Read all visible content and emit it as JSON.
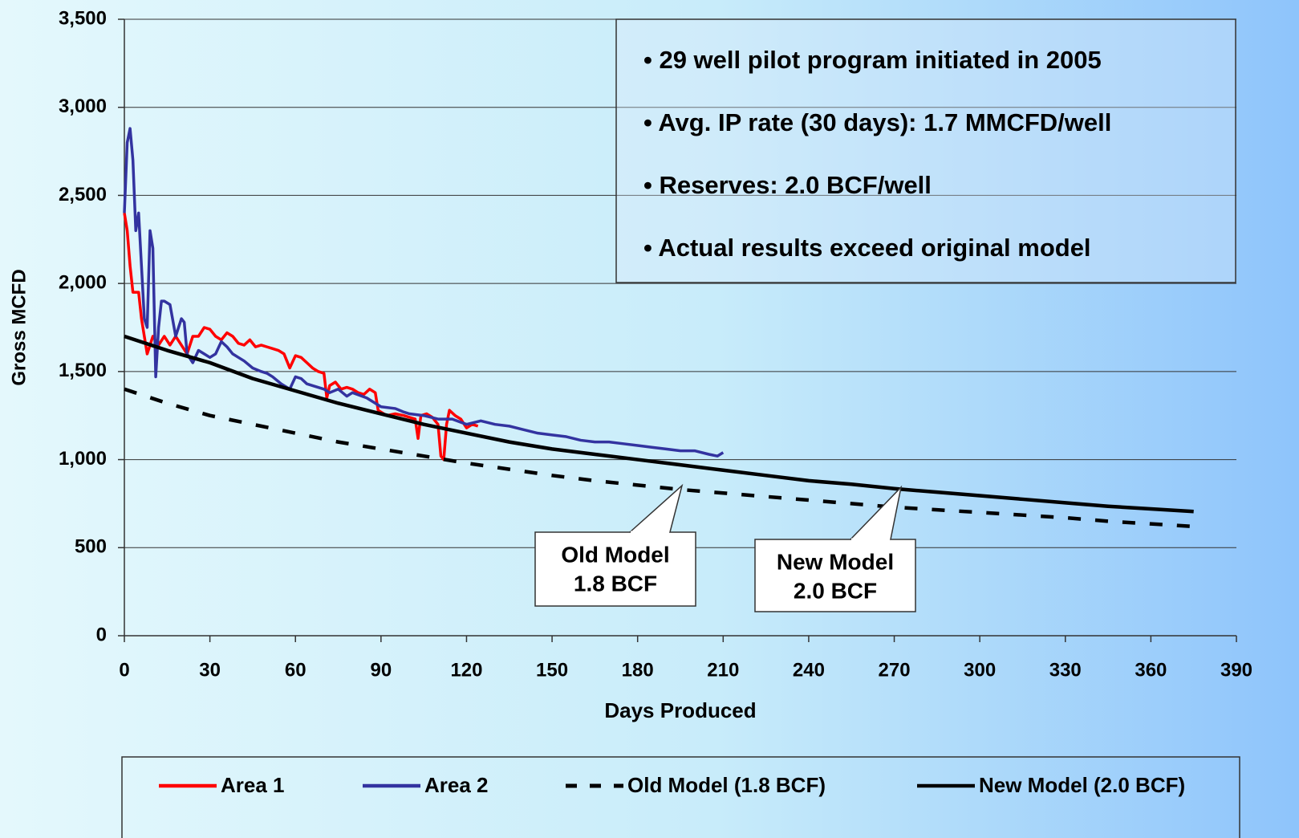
{
  "chart_data": {
    "type": "line",
    "xlabel": "Days Produced",
    "ylabel": "Gross MCFD",
    "xlim": [
      0,
      390
    ],
    "xticks": [
      0,
      30,
      60,
      90,
      120,
      150,
      180,
      210,
      240,
      270,
      300,
      330,
      360,
      390
    ],
    "ylim": [
      0,
      3500
    ],
    "yticks": [
      0,
      500,
      {
        "value": 1000,
        "label": "1,000"
      },
      {
        "value": 1500,
        "label": "1,500"
      },
      {
        "value": 2000,
        "label": "2,000"
      },
      {
        "value": 2500,
        "label": "2,500"
      },
      {
        "value": 3000,
        "label": "3,000"
      },
      {
        "value": 3500,
        "label": "3,500"
      }
    ],
    "grid": true,
    "legend": "bottom",
    "bullets": [
      "• 29 well pilot program initiated in 2005",
      "• Avg. IP rate (30 days): 1.7 MMCFD/well",
      "• Reserves: 2.0 BCF/well",
      "• Actual results exceed original model"
    ],
    "annotations": [
      {
        "lines": [
          "Old Model",
          "1.8 BCF"
        ]
      },
      {
        "lines": [
          "New Model",
          "2.0 BCF"
        ]
      }
    ],
    "series": [
      {
        "name": "Area 1",
        "color": "#ff0000",
        "line_style": "solid",
        "x": [
          0,
          1,
          2,
          3,
          5,
          6,
          7,
          8,
          9,
          10,
          12,
          14,
          16,
          18,
          20,
          22,
          24,
          26,
          28,
          30,
          32,
          34,
          36,
          38,
          40,
          42,
          44,
          46,
          48,
          50,
          52,
          54,
          56,
          57,
          58,
          60,
          62,
          64,
          66,
          68,
          70,
          71,
          72,
          74,
          76,
          78,
          80,
          82,
          84,
          86,
          88,
          89,
          90,
          92,
          95,
          98,
          100,
          102,
          103,
          104,
          106,
          108,
          110,
          111,
          112,
          113,
          114,
          116,
          118,
          120,
          122,
          124
        ],
        "values": [
          2400,
          2300,
          2100,
          1950,
          1950,
          1800,
          1700,
          1600,
          1650,
          1700,
          1650,
          1700,
          1650,
          1700,
          1650,
          1600,
          1700,
          1700,
          1750,
          1740,
          1700,
          1680,
          1720,
          1700,
          1660,
          1650,
          1680,
          1640,
          1650,
          1640,
          1630,
          1620,
          1600,
          1560,
          1520,
          1590,
          1580,
          1550,
          1520,
          1500,
          1490,
          1350,
          1420,
          1440,
          1400,
          1410,
          1400,
          1380,
          1370,
          1400,
          1380,
          1280,
          1270,
          1250,
          1260,
          1250,
          1240,
          1230,
          1120,
          1250,
          1260,
          1240,
          1200,
          1020,
          1000,
          1200,
          1280,
          1250,
          1230,
          1180,
          1200,
          1190
        ]
      },
      {
        "name": "Area 2",
        "color": "#3333a0",
        "line_style": "solid",
        "x": [
          0,
          1,
          2,
          3,
          4,
          5,
          6,
          7,
          8,
          9,
          10,
          11,
          12,
          13,
          14,
          16,
          18,
          20,
          21,
          22,
          24,
          26,
          28,
          30,
          32,
          34,
          36,
          38,
          40,
          42,
          45,
          48,
          50,
          52,
          55,
          58,
          60,
          62,
          64,
          66,
          70,
          72,
          75,
          78,
          80,
          85,
          90,
          95,
          98,
          100,
          105,
          110,
          115,
          120,
          125,
          130,
          135,
          140,
          145,
          150,
          155,
          160,
          165,
          170,
          175,
          180,
          185,
          190,
          195,
          200,
          205,
          208,
          210
        ],
        "values": [
          2400,
          2800,
          2880,
          2700,
          2300,
          2400,
          2100,
          1800,
          1750,
          2300,
          2200,
          1470,
          1750,
          1900,
          1900,
          1880,
          1700,
          1800,
          1780,
          1600,
          1550,
          1620,
          1600,
          1580,
          1600,
          1670,
          1640,
          1600,
          1580,
          1560,
          1520,
          1500,
          1490,
          1470,
          1430,
          1400,
          1470,
          1460,
          1430,
          1420,
          1400,
          1380,
          1400,
          1360,
          1380,
          1350,
          1300,
          1290,
          1270,
          1260,
          1250,
          1230,
          1230,
          1200,
          1220,
          1200,
          1190,
          1170,
          1150,
          1140,
          1130,
          1110,
          1100,
          1100,
          1090,
          1080,
          1070,
          1060,
          1050,
          1050,
          1030,
          1020,
          1040
        ]
      },
      {
        "name": "Old Model (1.8 BCF)",
        "color": "#000000",
        "line_style": "dashed",
        "x": [
          0,
          15,
          30,
          45,
          60,
          75,
          90,
          105,
          120,
          135,
          150,
          165,
          180,
          195,
          210,
          225,
          240,
          255,
          270,
          285,
          300,
          315,
          330,
          345,
          360,
          375
        ],
        "values": [
          1400,
          1320,
          1250,
          1200,
          1150,
          1100,
          1060,
          1020,
          980,
          945,
          910,
          880,
          855,
          830,
          810,
          790,
          770,
          750,
          730,
          715,
          700,
          685,
          670,
          650,
          635,
          620
        ]
      },
      {
        "name": "New Model (2.0 BCF)",
        "color": "#000000",
        "line_style": "solid",
        "x": [
          0,
          15,
          30,
          45,
          60,
          75,
          90,
          105,
          120,
          135,
          150,
          165,
          180,
          195,
          210,
          225,
          240,
          255,
          270,
          285,
          300,
          315,
          330,
          345,
          360,
          375
        ],
        "values": [
          1700,
          1620,
          1550,
          1460,
          1390,
          1320,
          1260,
          1200,
          1150,
          1100,
          1060,
          1030,
          1000,
          970,
          940,
          910,
          880,
          860,
          835,
          815,
          795,
          775,
          755,
          735,
          720,
          705
        ]
      }
    ]
  }
}
